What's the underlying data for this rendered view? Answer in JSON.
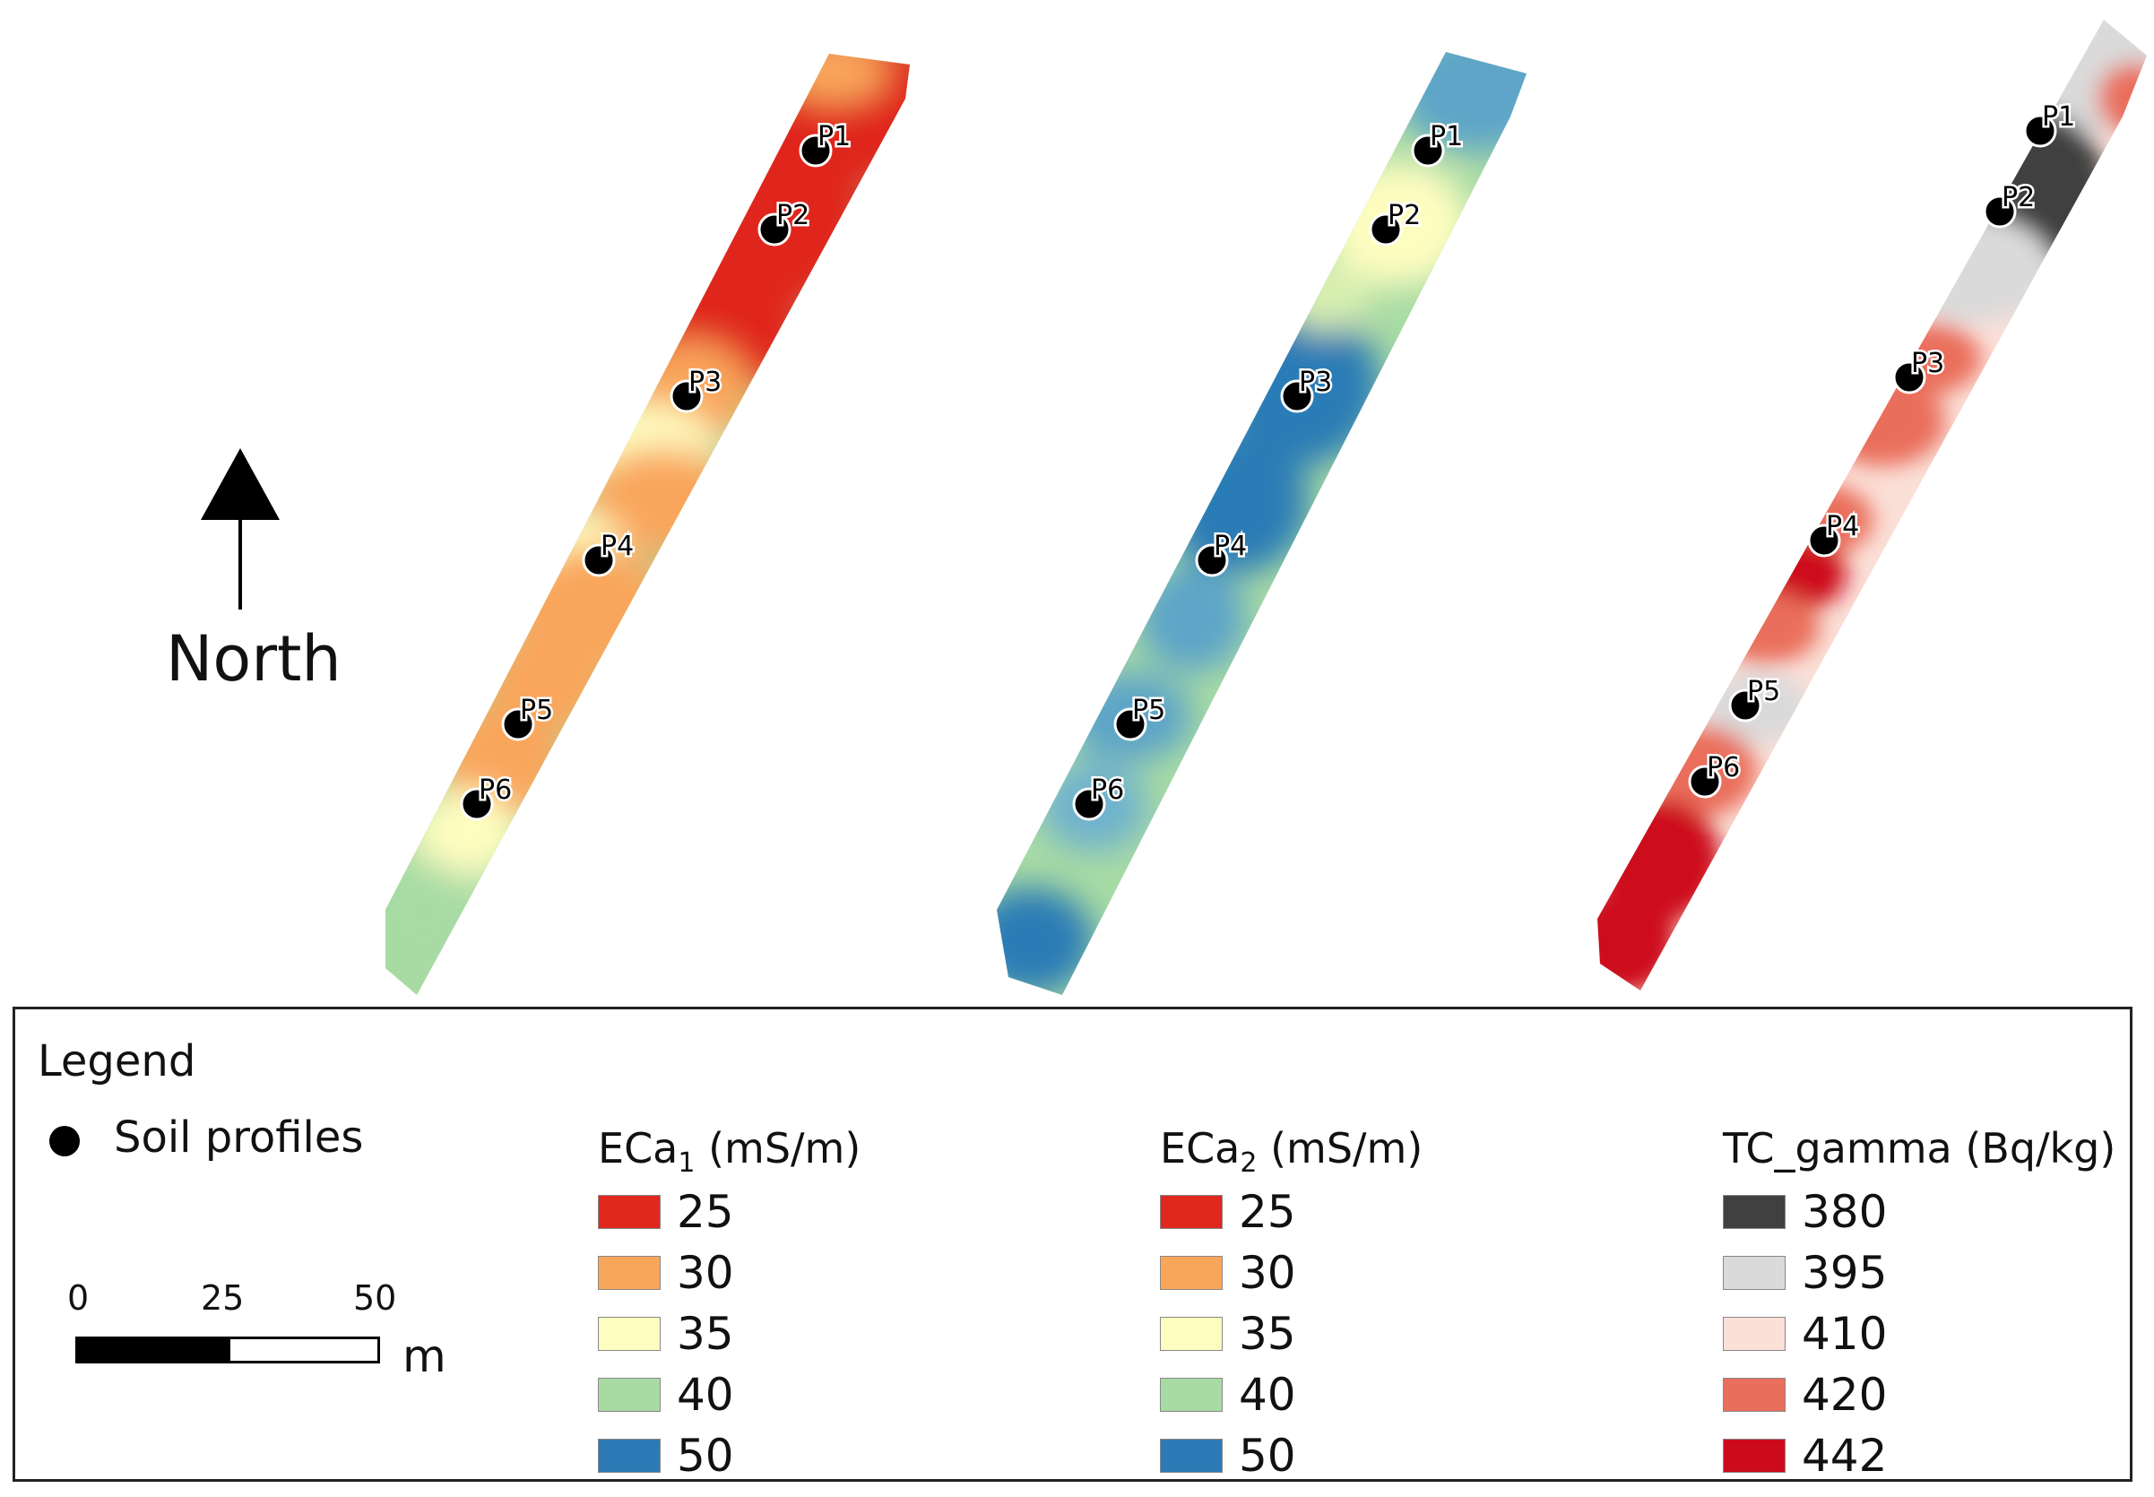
{
  "north_arrow": {
    "label": "North"
  },
  "legend": {
    "title": "Legend",
    "soil_profiles_label": "Soil profiles",
    "scale_bar": {
      "ticks": [
        "0",
        "25",
        "50"
      ],
      "unit": "m"
    },
    "columns": [
      {
        "title_main": "ECa",
        "title_sub": "1",
        "title_unit": " (mS/m)",
        "entries": [
          {
            "label": "25",
            "color": "#e0281e"
          },
          {
            "label": "30",
            "color": "#f9a65b"
          },
          {
            "label": "35",
            "color": "#fefdc0"
          },
          {
            "label": "40",
            "color": "#a8dba4"
          },
          {
            "label": "50",
            "color": "#2c7bb6"
          }
        ]
      },
      {
        "title_main": "ECa",
        "title_sub": "2",
        "title_unit": " (mS/m)",
        "entries": [
          {
            "label": "25",
            "color": "#e0281e"
          },
          {
            "label": "30",
            "color": "#f9a65b"
          },
          {
            "label": "35",
            "color": "#fefdc0"
          },
          {
            "label": "40",
            "color": "#a8dba4"
          },
          {
            "label": "50",
            "color": "#2c7bb6"
          }
        ]
      },
      {
        "title_main": "TC_gamma",
        "title_sub": "",
        "title_unit": " (Bq/kg)",
        "entries": [
          {
            "label": "380",
            "color": "#404040"
          },
          {
            "label": "395",
            "color": "#dadada"
          },
          {
            "label": "410",
            "color": "#fbe0d8"
          },
          {
            "label": "420",
            "color": "#ea6e5c"
          },
          {
            "label": "442",
            "color": "#cd0a1c"
          }
        ]
      }
    ]
  },
  "maps": [
    {
      "name": "eca1-map",
      "profiles": [
        "P1",
        "P2",
        "P3",
        "P4",
        "P5",
        "P6"
      ]
    },
    {
      "name": "eca2-map",
      "profiles": [
        "P1",
        "P2",
        "P3",
        "P4",
        "P5",
        "P6"
      ]
    },
    {
      "name": "tc-gamma-map",
      "profiles": [
        "P1",
        "P2",
        "P3",
        "P4",
        "P5",
        "P6"
      ]
    }
  ]
}
